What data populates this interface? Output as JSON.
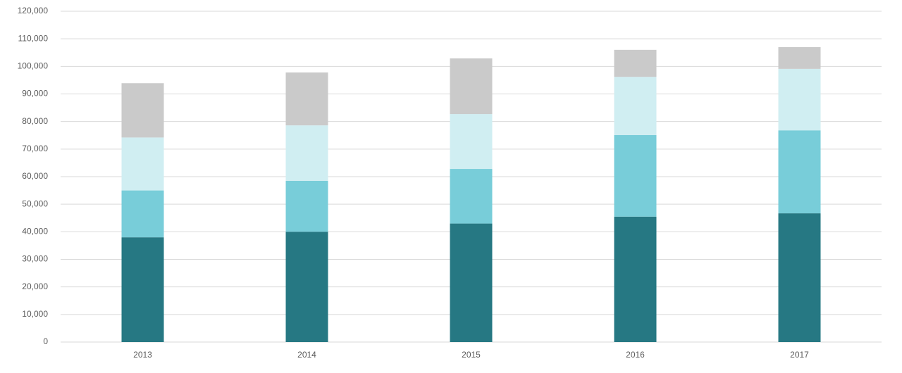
{
  "chart_data": {
    "type": "stacked-bar",
    "categories": [
      "2013",
      "2014",
      "2015",
      "2016",
      "2017"
    ],
    "series": [
      {
        "color": "#267883",
        "values": [
          38000,
          40000,
          43000,
          45500,
          46700
        ]
      },
      {
        "color": "#78cdd9",
        "values": [
          17000,
          18500,
          19800,
          29600,
          30100
        ]
      },
      {
        "color": "#d0eef2",
        "values": [
          19200,
          20100,
          19900,
          21100,
          22300
        ]
      },
      {
        "color": "#cacaca",
        "values": [
          19700,
          19200,
          20200,
          9800,
          7900
        ]
      }
    ],
    "ylim": [
      0,
      120000
    ],
    "yticks": [
      0,
      {
        "value": 10000,
        "label": "10,000"
      },
      {
        "value": 20000,
        "label": "20,000"
      },
      {
        "value": 30000,
        "label": "30,000"
      },
      {
        "value": 40000,
        "label": "40,000"
      },
      {
        "value": 50000,
        "label": "50,000"
      },
      {
        "value": 60000,
        "label": "60,000"
      },
      {
        "value": 70000,
        "label": "70,000"
      },
      {
        "value": 80000,
        "label": "80,000"
      },
      {
        "value": 90000,
        "label": "90,000"
      },
      {
        "value": 100000,
        "label": "100,000"
      },
      {
        "value": 110000,
        "label": "110,000"
      },
      {
        "value": 120000,
        "label": "120,000"
      }
    ],
    "grid": true
  }
}
